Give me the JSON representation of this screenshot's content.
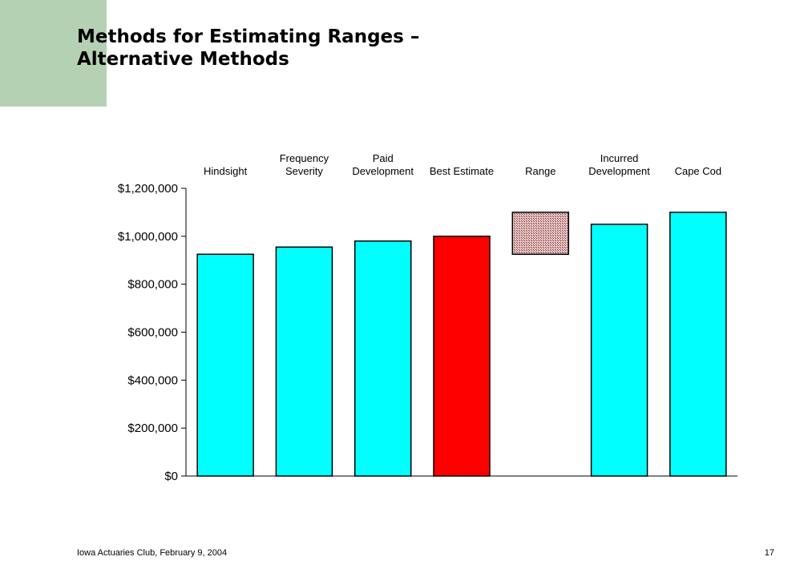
{
  "slide": {
    "title_line1": "Methods for Estimating Ranges –",
    "title_line2": "Alternative Methods",
    "footer": "Iowa Actuaries Club, February 9, 2004",
    "page_number": "17"
  },
  "chart_data": {
    "type": "bar",
    "categories": [
      [
        "Hindsight"
      ],
      [
        "Frequency",
        "Severity"
      ],
      [
        "Paid",
        "Development"
      ],
      [
        "Best Estimate"
      ],
      [
        "Range"
      ],
      [
        "Incurred",
        "Development"
      ],
      [
        "Cape Cod"
      ]
    ],
    "values": [
      925000,
      955000,
      980000,
      1000000,
      null,
      1050000,
      1100000
    ],
    "range_bar": {
      "category_index": 4,
      "low": 925000,
      "high": 1100000
    },
    "ylim": [
      0,
      1200000
    ],
    "yticks": [
      0,
      200000,
      400000,
      600000,
      800000,
      1000000,
      1200000
    ],
    "ytick_labels": [
      "$0",
      "$200,000",
      "$400,000",
      "$600,000",
      "$800,000",
      "$1,000,000",
      "$1,200,000"
    ],
    "bar_colors": [
      "#00ffff",
      "#00ffff",
      "#00ffff",
      "#ff0000",
      "#c89090",
      "#00ffff",
      "#00ffff"
    ],
    "category_labels_position": "top",
    "grid": false,
    "title": "",
    "xlabel": "",
    "ylabel": ""
  }
}
